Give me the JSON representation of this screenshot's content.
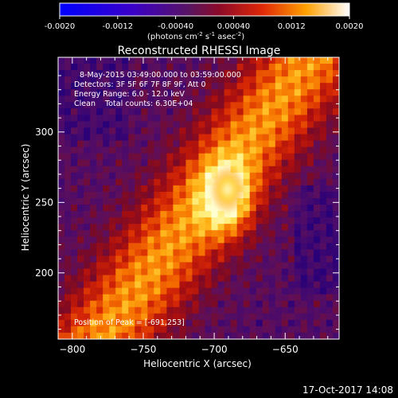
{
  "chart_data": {
    "type": "heatmap",
    "title": "Reconstructed RHESSI Image",
    "xlabel": "Heliocentric X (arcsec)",
    "ylabel": "Heliocentric Y (arcsec)",
    "xlim": [
      -810,
      -612
    ],
    "ylim": [
      153,
      353
    ],
    "x_ticks": [
      -800,
      -750,
      -700,
      -650
    ],
    "y_ticks": [
      200,
      250,
      300
    ],
    "colorbar": {
      "range": [
        -0.002,
        0.002
      ],
      "ticks": [
        "-0.0020",
        "-0.0012",
        "-0.00040",
        "0.00040",
        "0.0012",
        "0.0020"
      ],
      "label_main": "(photons cm",
      "label_exp1": "-2",
      "label_mid1": " s",
      "label_exp2": "-1",
      "label_mid2": " asec",
      "label_exp3": "-2",
      "label_end": ")"
    },
    "annotations": [
      "8-May-2015 03:49:00.000 to 03:59:00.000",
      "Detectors: 3F 5F 6F 7F 8F 9F, Att 0",
      "Energy Range: 6.0 - 12.0 keV",
      "Clean    Total counts: 6.30E+04"
    ],
    "peak_label": "Position of Peak = [-691,253]",
    "peak": [
      -691,
      253
    ]
  },
  "footer": {
    "timestamp": "17-Oct-2017 14:08"
  },
  "colors": {
    "background": "#000000",
    "text": "#ffffff"
  }
}
